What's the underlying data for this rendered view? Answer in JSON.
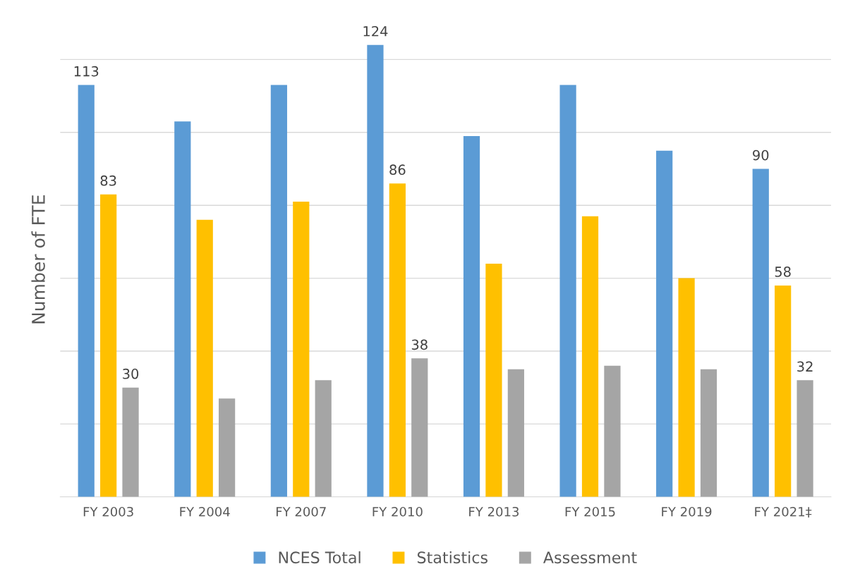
{
  "chart_data": {
    "type": "bar",
    "ylabel": "Number of FTE",
    "categories": [
      "FY 2003",
      "FY 2004",
      "FY 2007",
      "FY 2010",
      "FY 2013",
      "FY 2015",
      "FY 2019",
      "FY 2021‡"
    ],
    "series": [
      {
        "name": "NCES Total",
        "color": "#5b9bd5",
        "values": [
          113,
          103,
          113,
          124,
          99,
          113,
          95,
          90
        ],
        "value_labels": [
          "113",
          null,
          null,
          "124",
          null,
          null,
          null,
          "90"
        ]
      },
      {
        "name": "Statistics",
        "color": "#ffc000",
        "values": [
          83,
          76,
          81,
          86,
          64,
          77,
          60,
          58
        ],
        "value_labels": [
          "83",
          null,
          null,
          "86",
          null,
          null,
          null,
          "58"
        ]
      },
      {
        "name": "Assessment",
        "color": "#a5a5a5",
        "values": [
          30,
          27,
          32,
          38,
          35,
          36,
          35,
          32
        ],
        "value_labels": [
          "30",
          null,
          null,
          "38",
          null,
          null,
          null,
          "32"
        ]
      }
    ],
    "yticks": [
      {
        "value": 0,
        "label": null
      },
      {
        "value": 20,
        "label": null
      },
      {
        "value": 40,
        "label": null
      },
      {
        "value": 60,
        "label": null
      },
      {
        "value": 80,
        "label": null
      },
      {
        "value": 100,
        "label": null
      },
      {
        "value": 120,
        "label": null
      }
    ],
    "grid": "y",
    "legend": "bottom",
    "tick_labels": "x"
  }
}
